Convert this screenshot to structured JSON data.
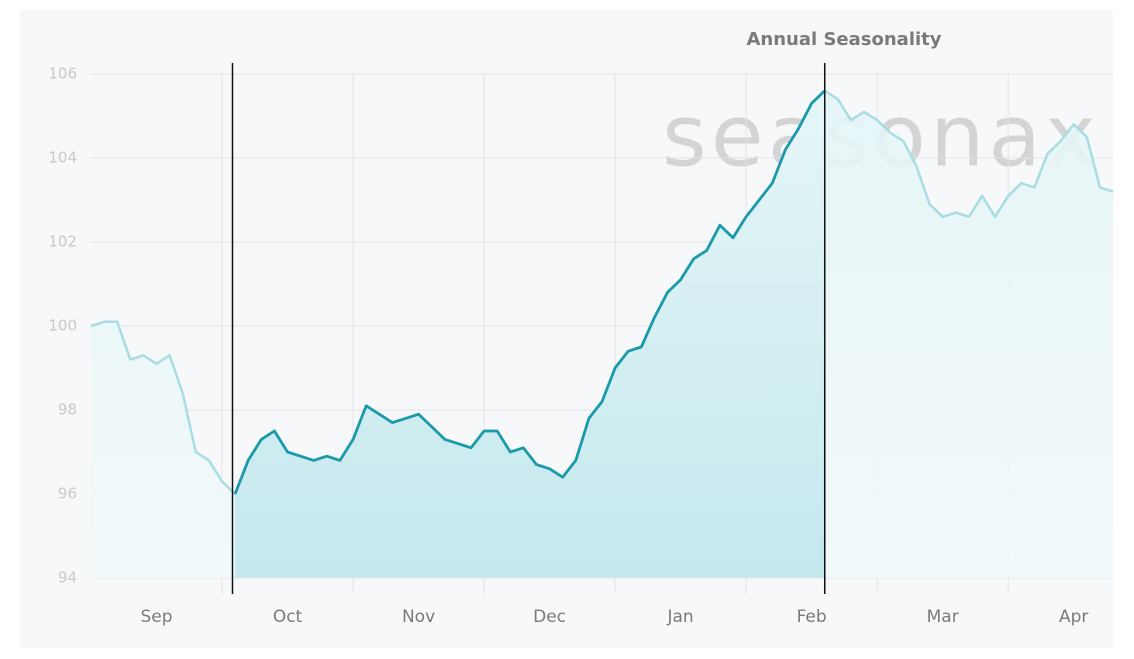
{
  "chart_data": {
    "type": "line",
    "title": "Annual Seasonality",
    "watermark": "seasonax",
    "x": [
      0,
      0.1,
      0.2,
      0.3,
      0.4,
      0.5,
      0.6,
      0.7,
      0.8,
      0.9,
      1.0,
      1.1,
      1.2,
      1.3,
      1.4,
      1.5,
      1.6,
      1.7,
      1.8,
      1.9,
      2.0,
      2.1,
      2.2,
      2.3,
      2.4,
      2.5,
      2.6,
      2.7,
      2.8,
      2.9,
      3.0,
      3.1,
      3.2,
      3.3,
      3.4,
      3.5,
      3.6,
      3.7,
      3.8,
      3.9,
      4.0,
      4.1,
      4.2,
      4.3,
      4.4,
      4.5,
      4.6,
      4.7,
      4.8,
      4.9,
      5.0,
      5.1,
      5.2,
      5.3,
      5.4,
      5.5,
      5.6,
      5.7,
      5.8,
      5.9,
      6.0,
      6.1,
      6.2,
      6.3,
      6.4,
      6.5,
      6.6,
      6.7,
      6.8,
      6.9,
      7.0,
      7.1,
      7.2,
      7.3,
      7.4,
      7.5,
      7.6,
      7.7,
      7.8
    ],
    "values": [
      100.0,
      100.1,
      100.1,
      99.2,
      99.3,
      99.1,
      99.3,
      98.4,
      97.0,
      96.8,
      96.3,
      96.0,
      96.8,
      97.3,
      97.5,
      97.0,
      96.9,
      96.8,
      96.9,
      96.8,
      97.3,
      98.1,
      97.9,
      97.7,
      97.8,
      97.9,
      97.6,
      97.3,
      97.2,
      97.1,
      97.5,
      97.5,
      97.0,
      97.1,
      96.7,
      96.6,
      96.4,
      96.8,
      97.8,
      98.2,
      99.0,
      99.4,
      99.5,
      100.2,
      100.8,
      101.1,
      101.6,
      101.8,
      102.4,
      102.1,
      102.6,
      103.0,
      103.4,
      104.2,
      104.7,
      105.3,
      105.6,
      105.4,
      104.9,
      105.1,
      104.9,
      104.6,
      104.4,
      103.8,
      102.9,
      102.6,
      102.7,
      102.6,
      103.1,
      102.6,
      103.1,
      103.4,
      103.3,
      104.1,
      104.4,
      104.8,
      104.5,
      103.3,
      103.2
    ],
    "color": "#1a9aaa",
    "faint_color": "#a8dde3",
    "highlight": [
      1.08,
      5.6
    ],
    "xlim": [
      0,
      7.8
    ],
    "ylim": [
      94,
      106
    ],
    "yticks": [
      94,
      96,
      98,
      100,
      102,
      104,
      106
    ],
    "xticks": [
      {
        "value": 0,
        "label": "Sep"
      },
      {
        "value": 1,
        "label": "Oct"
      },
      {
        "value": 2,
        "label": "Nov"
      },
      {
        "value": 3,
        "label": "Dec"
      },
      {
        "value": 4,
        "label": "Jan"
      },
      {
        "value": 5,
        "label": "Feb"
      },
      {
        "value": 6,
        "label": "Mar"
      },
      {
        "value": 7,
        "label": "Apr"
      }
    ],
    "grid": true
  }
}
